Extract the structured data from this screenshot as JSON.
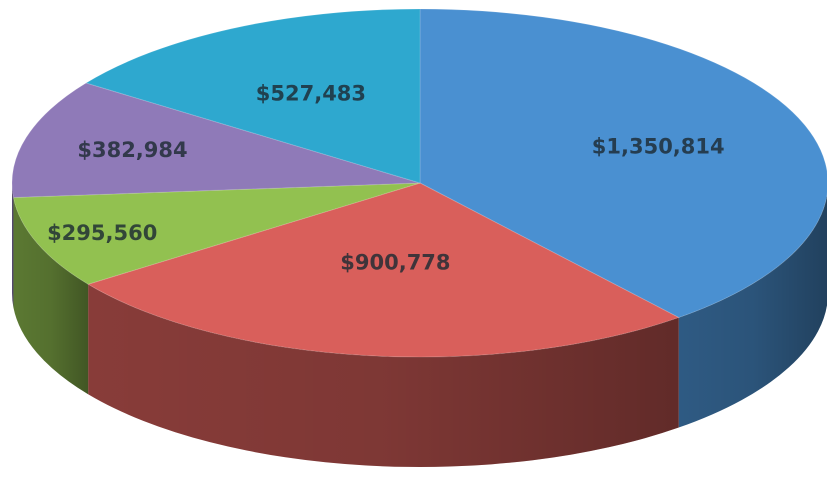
{
  "chart_data": {
    "type": "pie",
    "style": "3d",
    "title": "",
    "slices": [
      {
        "label": "$1,350,814",
        "value": 1350814,
        "color": "#4a90d1"
      },
      {
        "label": "$900,778",
        "value": 900778,
        "color": "#d95f5b"
      },
      {
        "label": "$295,560",
        "value": 295560,
        "color": "#92c150"
      },
      {
        "label": "$382,984",
        "value": 382984,
        "color": "#8f7ab8"
      },
      {
        "label": "$527,483",
        "value": 527483,
        "color": "#2ea8cf"
      }
    ],
    "legend": "none"
  }
}
